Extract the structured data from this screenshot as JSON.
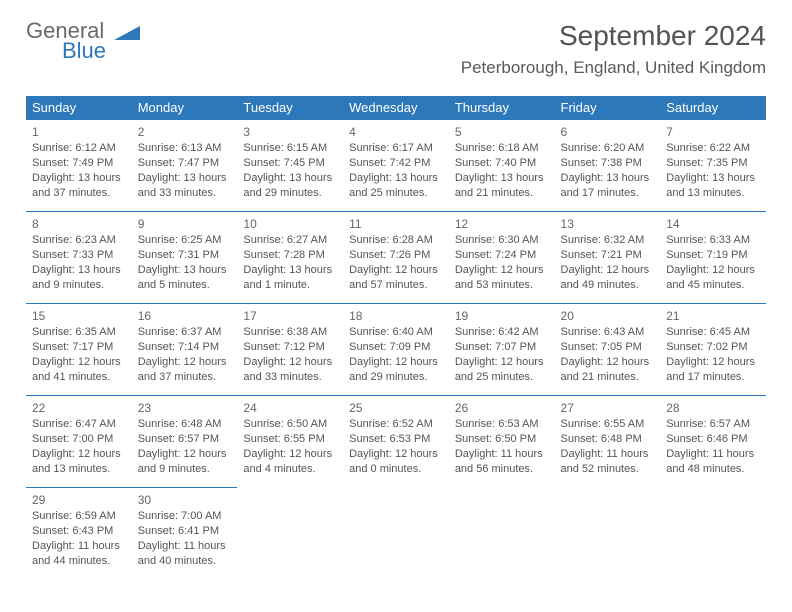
{
  "brand": {
    "word1": "General",
    "word2": "Blue"
  },
  "title": "September 2024",
  "location": "Peterborough, England, United Kingdom",
  "colors": {
    "header_bg": "#2d78b9",
    "header_text": "#ffffff",
    "border": "#2d78b9",
    "text": "#555555",
    "title": "#535353"
  },
  "weekdays": [
    "Sunday",
    "Monday",
    "Tuesday",
    "Wednesday",
    "Thursday",
    "Friday",
    "Saturday"
  ],
  "rows": [
    [
      {
        "n": "1",
        "sr": "Sunrise: 6:12 AM",
        "ss": "Sunset: 7:49 PM",
        "d1": "Daylight: 13 hours",
        "d2": "and 37 minutes."
      },
      {
        "n": "2",
        "sr": "Sunrise: 6:13 AM",
        "ss": "Sunset: 7:47 PM",
        "d1": "Daylight: 13 hours",
        "d2": "and 33 minutes."
      },
      {
        "n": "3",
        "sr": "Sunrise: 6:15 AM",
        "ss": "Sunset: 7:45 PM",
        "d1": "Daylight: 13 hours",
        "d2": "and 29 minutes."
      },
      {
        "n": "4",
        "sr": "Sunrise: 6:17 AM",
        "ss": "Sunset: 7:42 PM",
        "d1": "Daylight: 13 hours",
        "d2": "and 25 minutes."
      },
      {
        "n": "5",
        "sr": "Sunrise: 6:18 AM",
        "ss": "Sunset: 7:40 PM",
        "d1": "Daylight: 13 hours",
        "d2": "and 21 minutes."
      },
      {
        "n": "6",
        "sr": "Sunrise: 6:20 AM",
        "ss": "Sunset: 7:38 PM",
        "d1": "Daylight: 13 hours",
        "d2": "and 17 minutes."
      },
      {
        "n": "7",
        "sr": "Sunrise: 6:22 AM",
        "ss": "Sunset: 7:35 PM",
        "d1": "Daylight: 13 hours",
        "d2": "and 13 minutes."
      }
    ],
    [
      {
        "n": "8",
        "sr": "Sunrise: 6:23 AM",
        "ss": "Sunset: 7:33 PM",
        "d1": "Daylight: 13 hours",
        "d2": "and 9 minutes."
      },
      {
        "n": "9",
        "sr": "Sunrise: 6:25 AM",
        "ss": "Sunset: 7:31 PM",
        "d1": "Daylight: 13 hours",
        "d2": "and 5 minutes."
      },
      {
        "n": "10",
        "sr": "Sunrise: 6:27 AM",
        "ss": "Sunset: 7:28 PM",
        "d1": "Daylight: 13 hours",
        "d2": "and 1 minute."
      },
      {
        "n": "11",
        "sr": "Sunrise: 6:28 AM",
        "ss": "Sunset: 7:26 PM",
        "d1": "Daylight: 12 hours",
        "d2": "and 57 minutes."
      },
      {
        "n": "12",
        "sr": "Sunrise: 6:30 AM",
        "ss": "Sunset: 7:24 PM",
        "d1": "Daylight: 12 hours",
        "d2": "and 53 minutes."
      },
      {
        "n": "13",
        "sr": "Sunrise: 6:32 AM",
        "ss": "Sunset: 7:21 PM",
        "d1": "Daylight: 12 hours",
        "d2": "and 49 minutes."
      },
      {
        "n": "14",
        "sr": "Sunrise: 6:33 AM",
        "ss": "Sunset: 7:19 PM",
        "d1": "Daylight: 12 hours",
        "d2": "and 45 minutes."
      }
    ],
    [
      {
        "n": "15",
        "sr": "Sunrise: 6:35 AM",
        "ss": "Sunset: 7:17 PM",
        "d1": "Daylight: 12 hours",
        "d2": "and 41 minutes."
      },
      {
        "n": "16",
        "sr": "Sunrise: 6:37 AM",
        "ss": "Sunset: 7:14 PM",
        "d1": "Daylight: 12 hours",
        "d2": "and 37 minutes."
      },
      {
        "n": "17",
        "sr": "Sunrise: 6:38 AM",
        "ss": "Sunset: 7:12 PM",
        "d1": "Daylight: 12 hours",
        "d2": "and 33 minutes."
      },
      {
        "n": "18",
        "sr": "Sunrise: 6:40 AM",
        "ss": "Sunset: 7:09 PM",
        "d1": "Daylight: 12 hours",
        "d2": "and 29 minutes."
      },
      {
        "n": "19",
        "sr": "Sunrise: 6:42 AM",
        "ss": "Sunset: 7:07 PM",
        "d1": "Daylight: 12 hours",
        "d2": "and 25 minutes."
      },
      {
        "n": "20",
        "sr": "Sunrise: 6:43 AM",
        "ss": "Sunset: 7:05 PM",
        "d1": "Daylight: 12 hours",
        "d2": "and 21 minutes."
      },
      {
        "n": "21",
        "sr": "Sunrise: 6:45 AM",
        "ss": "Sunset: 7:02 PM",
        "d1": "Daylight: 12 hours",
        "d2": "and 17 minutes."
      }
    ],
    [
      {
        "n": "22",
        "sr": "Sunrise: 6:47 AM",
        "ss": "Sunset: 7:00 PM",
        "d1": "Daylight: 12 hours",
        "d2": "and 13 minutes."
      },
      {
        "n": "23",
        "sr": "Sunrise: 6:48 AM",
        "ss": "Sunset: 6:57 PM",
        "d1": "Daylight: 12 hours",
        "d2": "and 9 minutes."
      },
      {
        "n": "24",
        "sr": "Sunrise: 6:50 AM",
        "ss": "Sunset: 6:55 PM",
        "d1": "Daylight: 12 hours",
        "d2": "and 4 minutes."
      },
      {
        "n": "25",
        "sr": "Sunrise: 6:52 AM",
        "ss": "Sunset: 6:53 PM",
        "d1": "Daylight: 12 hours",
        "d2": "and 0 minutes."
      },
      {
        "n": "26",
        "sr": "Sunrise: 6:53 AM",
        "ss": "Sunset: 6:50 PM",
        "d1": "Daylight: 11 hours",
        "d2": "and 56 minutes."
      },
      {
        "n": "27",
        "sr": "Sunrise: 6:55 AM",
        "ss": "Sunset: 6:48 PM",
        "d1": "Daylight: 11 hours",
        "d2": "and 52 minutes."
      },
      {
        "n": "28",
        "sr": "Sunrise: 6:57 AM",
        "ss": "Sunset: 6:46 PM",
        "d1": "Daylight: 11 hours",
        "d2": "and 48 minutes."
      }
    ],
    [
      {
        "n": "29",
        "sr": "Sunrise: 6:59 AM",
        "ss": "Sunset: 6:43 PM",
        "d1": "Daylight: 11 hours",
        "d2": "and 44 minutes."
      },
      {
        "n": "30",
        "sr": "Sunrise: 7:00 AM",
        "ss": "Sunset: 6:41 PM",
        "d1": "Daylight: 11 hours",
        "d2": "and 40 minutes."
      },
      null,
      null,
      null,
      null,
      null
    ]
  ]
}
